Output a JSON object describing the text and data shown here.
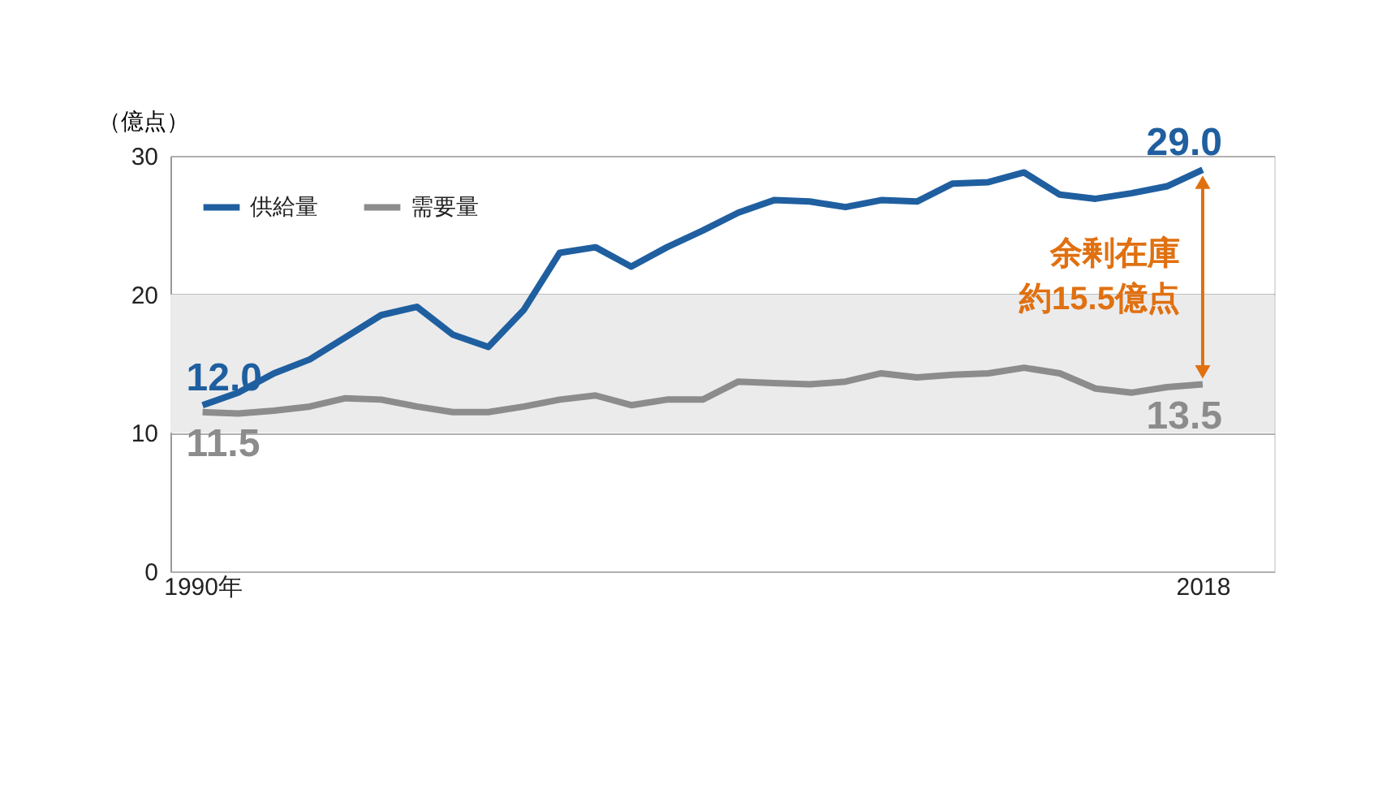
{
  "chart_data": {
    "type": "line",
    "ylabel": "（億点）",
    "x": [
      1990,
      1991,
      1992,
      1993,
      1994,
      1995,
      1996,
      1997,
      1998,
      1999,
      2000,
      2001,
      2002,
      2003,
      2004,
      2005,
      2006,
      2007,
      2008,
      2009,
      2010,
      2011,
      2012,
      2013,
      2014,
      2015,
      2016,
      2017,
      2018
    ],
    "series": [
      {
        "name": "供給量",
        "color": "#1f5fa0",
        "values": [
          12.0,
          12.9,
          14.3,
          15.3,
          16.9,
          18.5,
          19.1,
          17.1,
          16.2,
          18.9,
          23.0,
          23.4,
          22.0,
          23.4,
          24.6,
          25.9,
          26.8,
          26.7,
          26.3,
          26.8,
          26.7,
          28.0,
          28.1,
          28.8,
          27.2,
          26.9,
          27.3,
          27.8,
          29.0
        ],
        "value_labels": [
          "12.0",
          null,
          null,
          null,
          null,
          null,
          null,
          null,
          null,
          null,
          null,
          null,
          null,
          null,
          null,
          null,
          null,
          null,
          null,
          null,
          null,
          null,
          null,
          null,
          null,
          null,
          null,
          null,
          "29.0"
        ]
      },
      {
        "name": "需要量",
        "color": "#8c8c8c",
        "values": [
          11.5,
          11.4,
          11.6,
          11.9,
          12.5,
          12.4,
          11.9,
          11.5,
          11.5,
          11.9,
          12.4,
          12.7,
          12.0,
          12.4,
          12.4,
          13.7,
          13.6,
          13.5,
          13.7,
          14.3,
          14.0,
          14.2,
          14.3,
          14.7,
          14.3,
          13.2,
          12.9,
          13.3,
          13.5
        ],
        "value_labels": [
          "11.5",
          null,
          null,
          null,
          null,
          null,
          null,
          null,
          null,
          null,
          null,
          null,
          null,
          null,
          null,
          null,
          null,
          null,
          null,
          null,
          null,
          null,
          null,
          null,
          null,
          null,
          null,
          null,
          "13.5"
        ]
      }
    ],
    "xlim": [
      1989.1,
      2020
    ],
    "xticks": [
      {
        "value": 1990,
        "label": "1990年"
      },
      2018
    ],
    "ylim": [
      0,
      30
    ],
    "yticks": [
      0,
      10,
      20,
      30
    ],
    "bands": [
      {
        "axis": "y",
        "from": 10,
        "to": 20,
        "color": "#ebebeb"
      }
    ],
    "annotations": [
      "余剰在庫",
      "約15.5億点"
    ],
    "grid": "y",
    "legend": "top left"
  }
}
